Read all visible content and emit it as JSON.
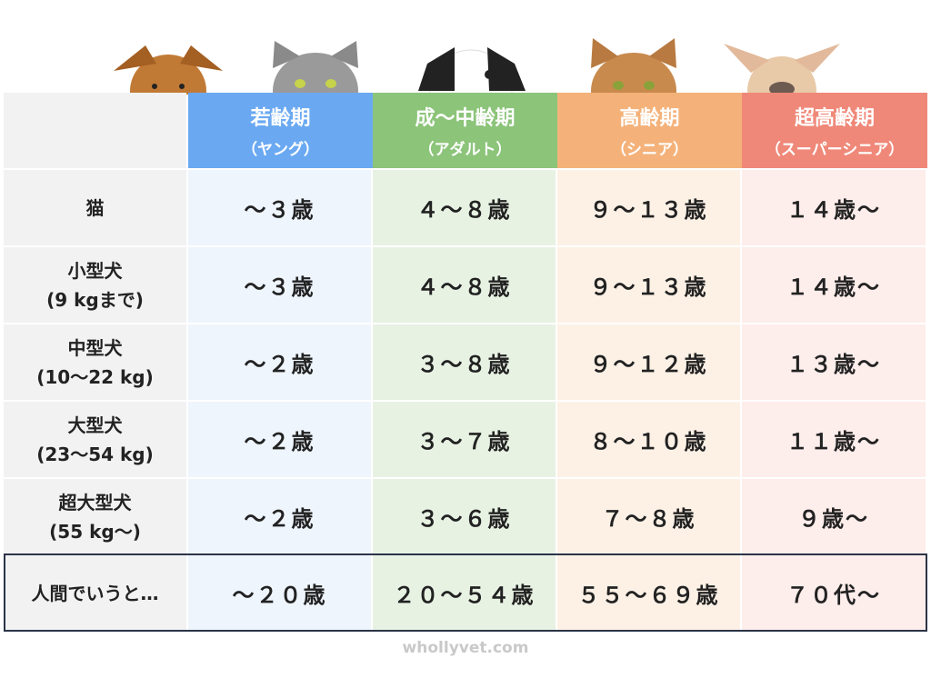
{
  "header": {
    "columns": [
      {
        "title": "若齢期",
        "subtitle": "（ヤング）",
        "color": "#6aa9f2",
        "tint": "#eef5fd"
      },
      {
        "title": "成〜中齢期",
        "subtitle": "（アダルト）",
        "color": "#8cc47a",
        "tint": "#e7f2e3"
      },
      {
        "title": "高齢期",
        "subtitle": "（シニア）",
        "color": "#f4b27a",
        "tint": "#fdf1e6"
      },
      {
        "title": "超高齢期",
        "subtitle": "（スーパーシニア）",
        "color": "#ef8878",
        "tint": "#fdedeb"
      }
    ]
  },
  "rows": [
    {
      "label": [
        "猫"
      ],
      "cells": [
        "〜３歳",
        "４〜８歳",
        "９〜１３歳",
        "１４歳〜"
      ]
    },
    {
      "label": [
        "小型犬",
        "(9 kgまで)"
      ],
      "cells": [
        "〜３歳",
        "４〜８歳",
        "９〜１３歳",
        "１４歳〜"
      ]
    },
    {
      "label": [
        "中型犬",
        "(10〜22 kg)"
      ],
      "cells": [
        "〜２歳",
        "３〜８歳",
        "９〜１２歳",
        "１３歳〜"
      ]
    },
    {
      "label": [
        "大型犬",
        "(23〜54 kg)"
      ],
      "cells": [
        "〜２歳",
        "３〜７歳",
        "８〜１０歳",
        "１１歳〜"
      ]
    },
    {
      "label": [
        "超大型犬",
        "(55 kg〜)"
      ],
      "cells": [
        "〜２歳",
        "３〜６歳",
        "７〜８歳",
        "９歳〜"
      ]
    }
  ],
  "summary": {
    "label": "人間でいうと…",
    "cells": [
      "〜２０歳",
      "２０〜５４歳",
      "５５〜６９歳",
      "７０代〜"
    ]
  },
  "footer": "whollyvet.com"
}
